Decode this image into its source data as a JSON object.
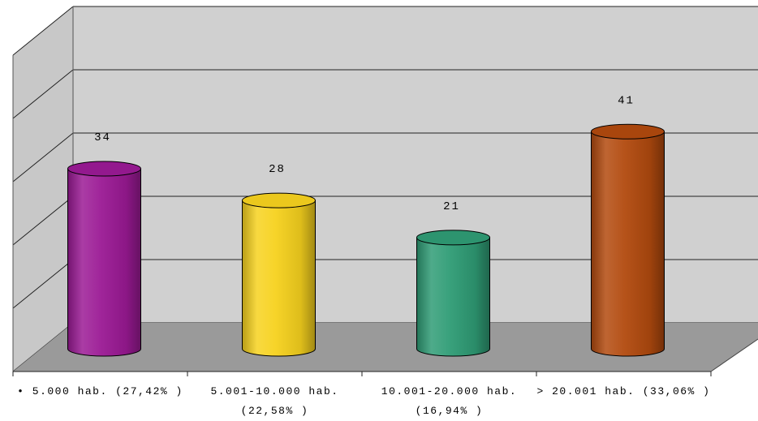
{
  "chart_data": {
    "type": "bar",
    "style": "3d-cylinder",
    "categories": [
      [
        "• 5.000 hab. (27,42% )"
      ],
      [
        "5.001-10.000 hab.",
        "(22,58% )"
      ],
      [
        "10.001-20.000 hab.",
        "(16,94% )"
      ],
      [
        "> 20.001 hab. (33,06% )"
      ]
    ],
    "values": [
      34,
      28,
      21,
      41
    ],
    "data_labels": [
      "34",
      "28",
      "21",
      "41"
    ],
    "colors": [
      "#9b1a95",
      "#f7d21e",
      "#2f9c75",
      "#b24a0e"
    ],
    "ylim": [
      0,
      50
    ],
    "grid": true,
    "title": "",
    "xlabel": "",
    "ylabel": ""
  }
}
